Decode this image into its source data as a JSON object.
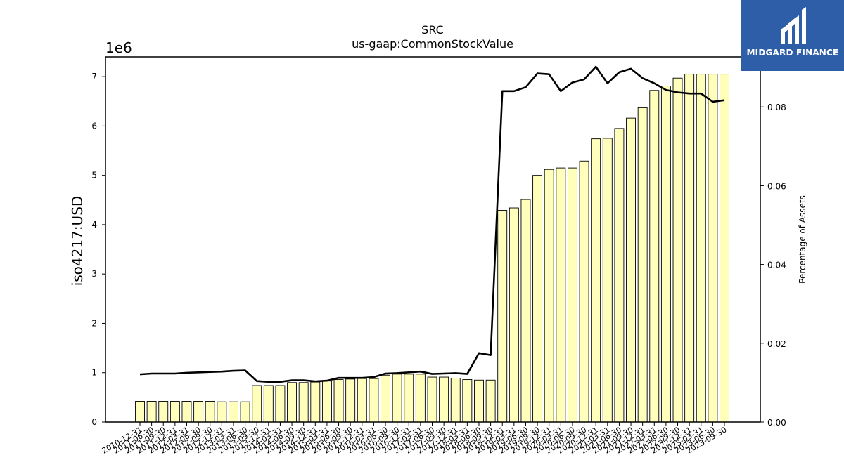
{
  "chart_data": {
    "type": "bar",
    "title": "SRC",
    "subtitle": "us-gaap:CommonStockValue",
    "ylabel": "iso4217:USD",
    "ylabel_right": "Percentage of Assets",
    "y_offset_label": "1e6",
    "ylim": [
      0,
      7400000
    ],
    "ylim_right": [
      0,
      0.0927
    ],
    "yticks": [
      0,
      1,
      2,
      3,
      4,
      5,
      6,
      7
    ],
    "yticks_right": [
      "0.00",
      "0.02",
      "0.04",
      "0.06",
      "0.08"
    ],
    "categories": [
      "2010-12-31",
      "2011-06-30",
      "2011-09-30",
      "2011-12-31",
      "2012-03-31",
      "2012-06-30",
      "2012-09-30",
      "2012-12-31",
      "2013-03-31",
      "2013-06-30",
      "2013-09-30",
      "2013-12-31",
      "2014-03-31",
      "2014-06-30",
      "2014-09-30",
      "2014-12-31",
      "2015-03-31",
      "2015-06-30",
      "2015-09-30",
      "2015-12-31",
      "2016-03-31",
      "2016-06-30",
      "2016-09-30",
      "2016-12-31",
      "2017-03-31",
      "2017-06-30",
      "2017-09-30",
      "2017-12-31",
      "2018-03-31",
      "2018-06-30",
      "2018-09-30",
      "2018-12-31",
      "2019-03-31",
      "2019-06-30",
      "2019-09-30",
      "2019-12-31",
      "2020-03-31",
      "2020-06-30",
      "2020-09-30",
      "2020-12-31",
      "2021-03-31",
      "2021-06-30",
      "2021-09-30",
      "2021-12-31",
      "2022-03-31",
      "2022-06-30",
      "2022-09-30",
      "2022-12-31",
      "2023-03-31",
      "2023-06-30",
      "2023-09-30"
    ],
    "series": [
      {
        "values": [
          420000,
          420000,
          420000,
          420000,
          420000,
          420000,
          420000,
          410000,
          410000,
          410000,
          740000,
          740000,
          740000,
          800000,
          800000,
          810000,
          830000,
          860000,
          870000,
          880000,
          880000,
          950000,
          970000,
          970000,
          970000,
          910000,
          910000,
          890000,
          860000,
          850000,
          850000,
          4290000,
          4340000,
          4510000,
          5000000,
          5120000,
          5150000,
          5150000,
          5290000,
          5740000,
          5750000,
          5950000,
          6160000,
          6370000,
          6720000,
          6810000,
          6970000,
          7050000,
          7050000,
          7050000,
          7050000
        ],
        "color": "#ffffbb"
      },
      {
        "values": [
          0.0121,
          0.0123,
          0.0123,
          0.0123,
          0.0125,
          0.0126,
          0.0127,
          0.0128,
          0.013,
          0.0131,
          0.0104,
          0.0102,
          0.0102,
          0.0106,
          0.0106,
          0.0103,
          0.0105,
          0.0112,
          0.0112,
          0.0112,
          0.0114,
          0.0123,
          0.0124,
          0.0126,
          0.0128,
          0.0122,
          0.0123,
          0.0124,
          0.0122,
          0.0175,
          0.017,
          0.084,
          0.084,
          0.085,
          0.0885,
          0.0883,
          0.084,
          0.0862,
          0.087,
          0.0902,
          0.086,
          0.0888,
          0.0897,
          0.0873,
          0.086,
          0.0843,
          0.0837,
          0.0834,
          0.0834,
          0.0813,
          0.0817
        ],
        "color": "#000000"
      }
    ],
    "grid": false
  },
  "logo": {
    "text": "MIDGARD FINANCE",
    "color": "#2f5ea8",
    "icon": "midgard-logo-icon"
  }
}
